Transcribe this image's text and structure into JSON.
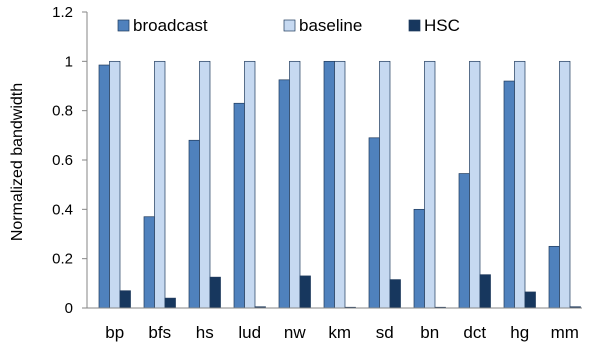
{
  "chart_data": {
    "type": "bar",
    "title": "",
    "xlabel": "",
    "ylabel": "Normalized bandwidth",
    "ylim": [
      0,
      1.2
    ],
    "yticks": [
      "0",
      "0.2",
      "0.4",
      "0.6",
      "0.8",
      "1",
      "1.2"
    ],
    "categories": [
      "bp",
      "bfs",
      "hs",
      "lud",
      "nw",
      "km",
      "sd",
      "bn",
      "dct",
      "hg",
      "mm"
    ],
    "series": [
      {
        "name": "broadcast",
        "color": "#4f81bd",
        "values": [
          0.985,
          0.37,
          0.68,
          0.83,
          0.925,
          1.0,
          0.69,
          0.4,
          0.545,
          0.92,
          0.25
        ]
      },
      {
        "name": "baseline",
        "color": "#c6d9f1",
        "values": [
          1.0,
          1.0,
          1.0,
          1.0,
          1.0,
          1.0,
          1.0,
          1.0,
          1.0,
          1.0,
          1.0
        ]
      },
      {
        "name": "HSC",
        "color": "#17375e",
        "values": [
          0.07,
          0.04,
          0.125,
          0.005,
          0.13,
          0.003,
          0.115,
          0.003,
          0.135,
          0.065,
          0.005
        ]
      }
    ],
    "legend_position": "top",
    "grid": false
  }
}
